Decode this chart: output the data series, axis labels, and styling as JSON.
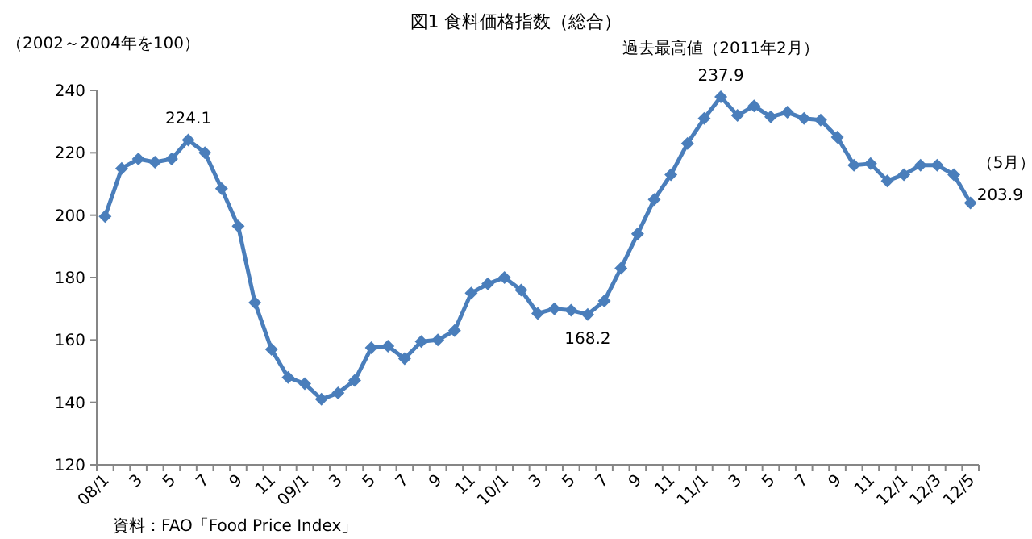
{
  "chart_data": {
    "type": "line",
    "title": "図1 食料価格指数（総合）",
    "ylabel": "（2002～2004年を100）",
    "categories": [
      "08/1",
      null,
      "3",
      null,
      "5",
      null,
      "7",
      null,
      "9",
      null,
      "11",
      null,
      "09/1",
      null,
      "3",
      null,
      "5",
      null,
      "7",
      null,
      "9",
      null,
      "11",
      null,
      "10/1",
      null,
      "3",
      null,
      "5",
      null,
      "7",
      null,
      "9",
      null,
      "11",
      null,
      "11/1",
      null,
      "3",
      null,
      "5",
      null,
      "7",
      null,
      "9",
      null,
      "11",
      null,
      "12/1",
      null,
      "12/3",
      null,
      "12/5"
    ],
    "series": [
      {
        "color": "#4a7ebb",
        "values": [
          199.6,
          215,
          218,
          217,
          218,
          224.1,
          220,
          208.5,
          196.5,
          172,
          157,
          148,
          146,
          141,
          143,
          147,
          157.5,
          158,
          154,
          159.5,
          160,
          163,
          175,
          178,
          180,
          176,
          168.5,
          170,
          169.5,
          168.2,
          172.5,
          183,
          194,
          205,
          213,
          223,
          231,
          237.9,
          232,
          235,
          231.5,
          233,
          231,
          230.5,
          225,
          216,
          216.5,
          211,
          213,
          216,
          216,
          213,
          203.9
        ]
      }
    ],
    "ylim": [
      120,
      240
    ],
    "yticks": [
      120,
      140,
      160,
      180,
      200,
      220,
      240
    ],
    "marker": "diamond",
    "line_style": "solid",
    "grid": false,
    "annotations": [
      {
        "text": "224.1",
        "y": 224.1
      },
      {
        "text": "237.9",
        "y": 237.9
      },
      {
        "text": "過去最高値（2011年2月）",
        "y": 237.9
      },
      {
        "text": "168.2",
        "y": 168.2
      },
      "203.9",
      "（5月）",
      "資料：FAO「Food Price Index」"
    ]
  }
}
